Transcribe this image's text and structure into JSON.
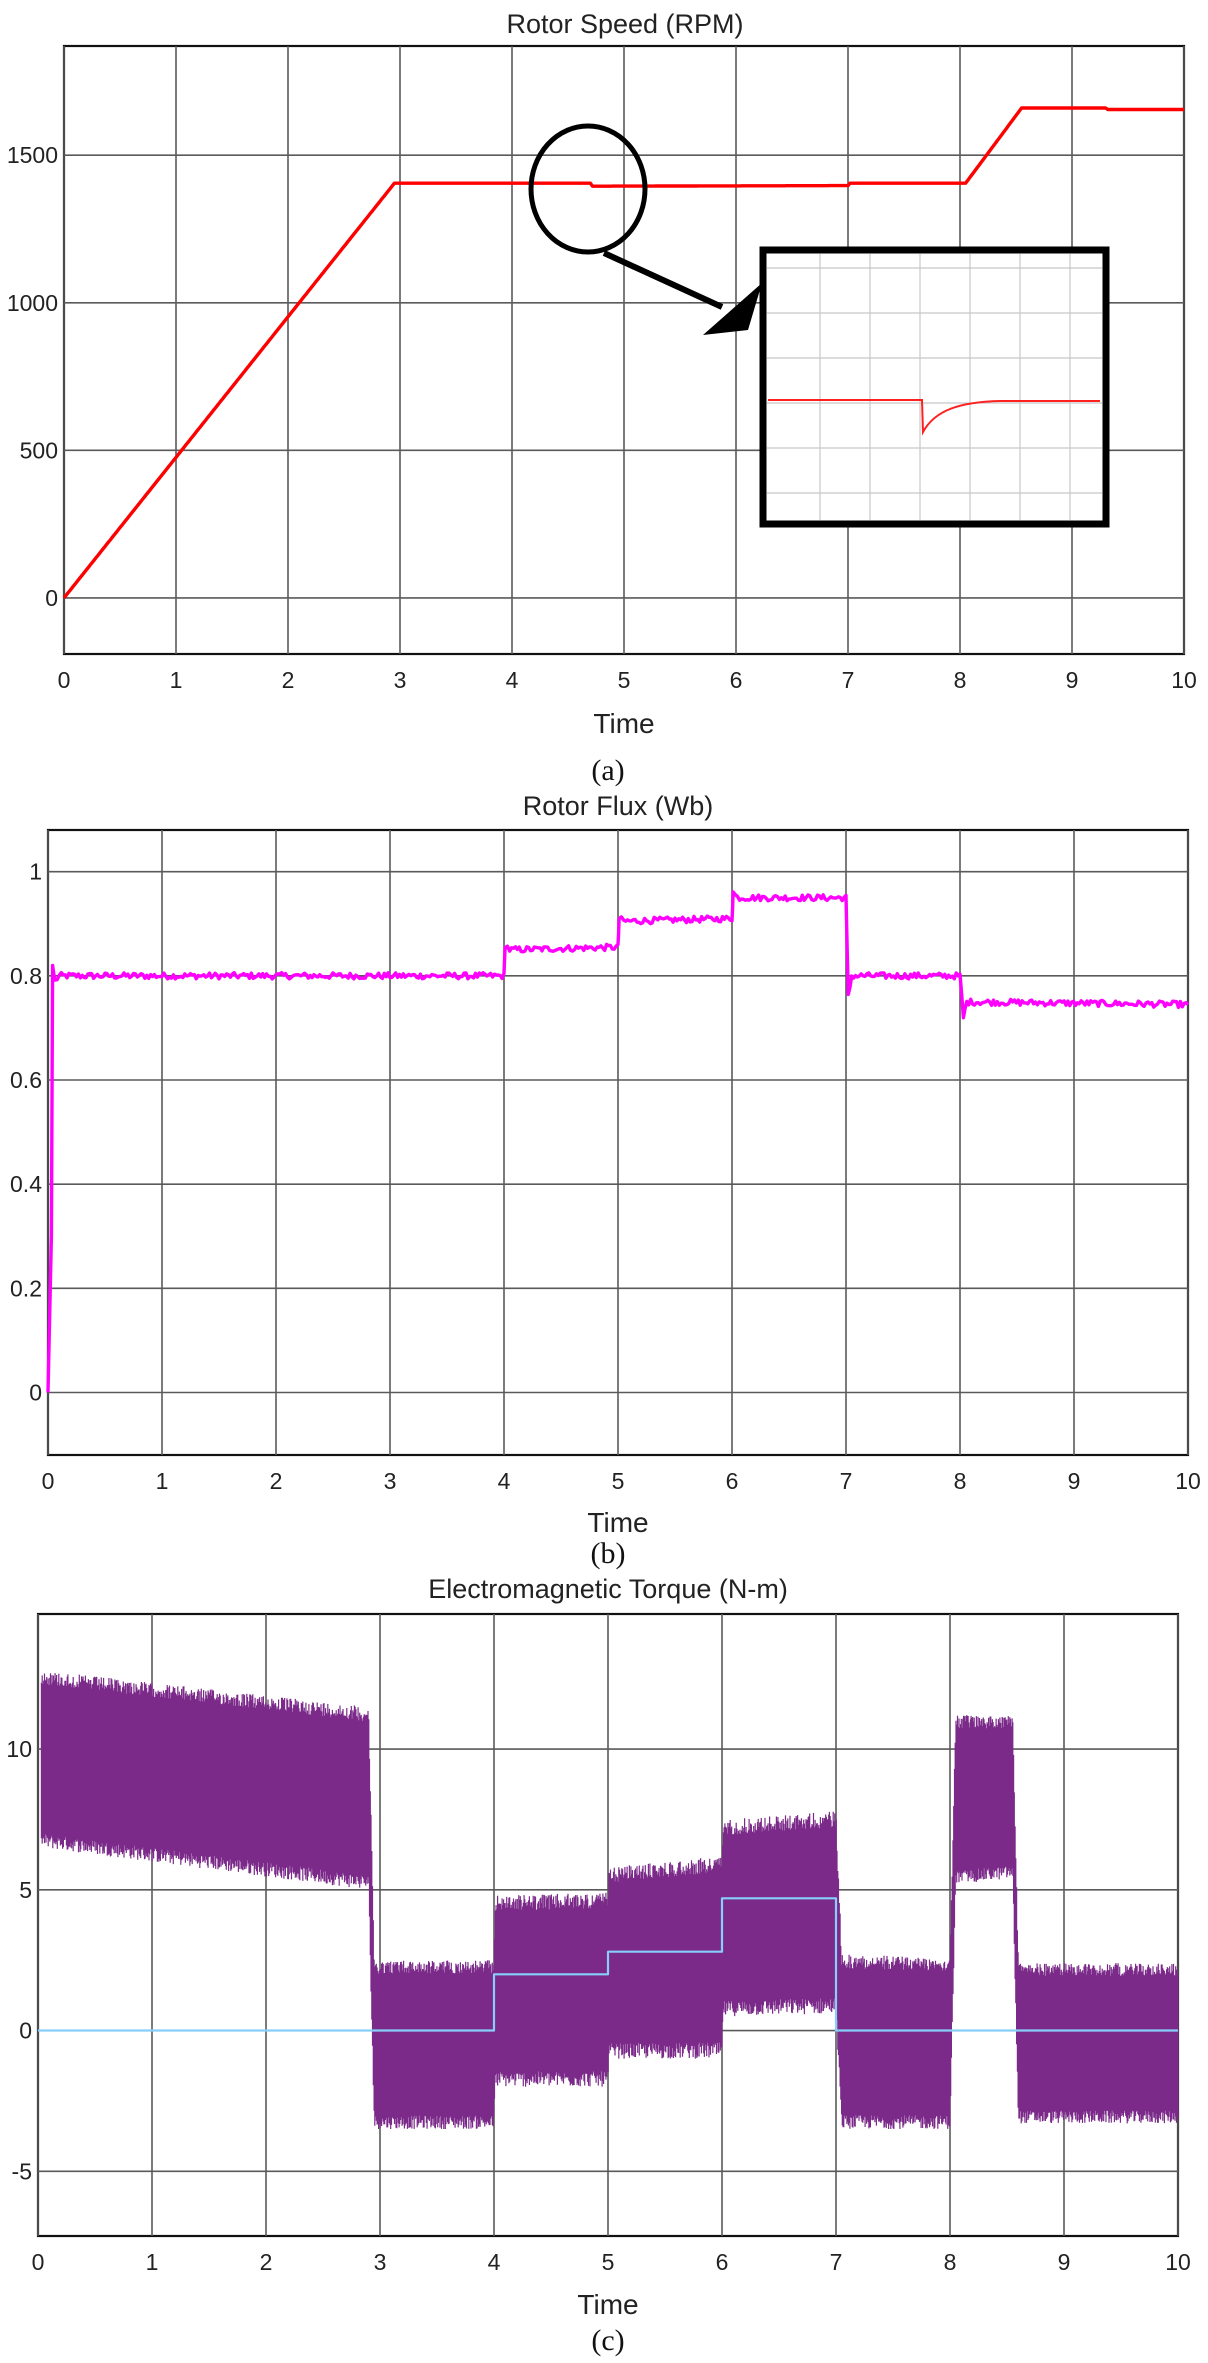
{
  "chart_data": [
    {
      "type": "line",
      "caption": "(a)",
      "title": "Rotor Speed (RPM)",
      "xlabel": "Time",
      "ylabel": "",
      "xlim": [
        0,
        10
      ],
      "ylim": [
        -190,
        1870
      ],
      "xticks": [
        0,
        1,
        2,
        3,
        4,
        5,
        6,
        7,
        8,
        9,
        10
      ],
      "yticks": [
        0,
        500,
        1000,
        1500
      ],
      "grid": true,
      "series": [
        {
          "color": "#ff0000",
          "x": [
            0,
            2.95,
            4.7,
            4.72,
            7,
            7.02,
            8.05,
            8.55,
            9.3,
            9.32,
            10
          ],
          "y": [
            0,
            1405,
            1405,
            1395,
            1397,
            1405,
            1405,
            1660,
            1660,
            1655,
            1655
          ]
        }
      ],
      "annotations": [
        {
          "type": "ellipse",
          "cx": 4.65,
          "cy": 1380
        },
        {
          "type": "inset",
          "color": "#ff0000",
          "description": "zoomed speed dip"
        }
      ]
    },
    {
      "type": "line",
      "caption": "(b)",
      "title": "Rotor Flux (Wb)",
      "xlabel": "Time",
      "ylabel": "",
      "xlim": [
        0,
        10
      ],
      "ylim": [
        -0.12,
        1.08
      ],
      "xticks": [
        0,
        1,
        2,
        3,
        4,
        5,
        6,
        7,
        8,
        9,
        10
      ],
      "yticks": [
        0,
        0.2,
        0.4,
        0.6,
        0.8,
        1
      ],
      "grid": true,
      "series": [
        {
          "color": "#ff00ff",
          "x": [
            0,
            0.03,
            0.04,
            0.06,
            0.1,
            4,
            4.01,
            4.05,
            5,
            5.01,
            5.05,
            6,
            6.01,
            6.05,
            7,
            7.02,
            7.05,
            8,
            8.03,
            8.06,
            10
          ],
          "y": [
            0,
            0.3,
            0.82,
            0.79,
            0.8,
            0.8,
            0.86,
            0.85,
            0.855,
            0.91,
            0.905,
            0.91,
            0.96,
            0.95,
            0.95,
            0.76,
            0.8,
            0.8,
            0.72,
            0.75,
            0.745
          ]
        }
      ]
    },
    {
      "type": "line",
      "caption": "(c)",
      "title": "Electromagnetic Torque (N-m)",
      "xlabel": "Time",
      "ylabel": "",
      "xlim": [
        0,
        10
      ],
      "ylim": [
        -7.3,
        14.8
      ],
      "xticks": [
        0,
        1,
        2,
        3,
        4,
        5,
        6,
        7,
        8,
        9,
        10
      ],
      "yticks": [
        -5,
        0,
        5,
        10
      ],
      "grid": true,
      "series": [
        {
          "color": "#7b2a8a",
          "kind": "band",
          "x": [
            0.03,
            2.9,
            2.95,
            4,
            4.01,
            5,
            5.01,
            6,
            6.01,
            7,
            7.05,
            8,
            8.05,
            8.55,
            8.6,
            10
          ],
          "upper": [
            12.8,
            11.5,
            2.5,
            2.5,
            4.8,
            4.9,
            5.8,
            6.2,
            7.5,
            7.8,
            2.7,
            2.6,
            11.2,
            11.2,
            2.4,
            2.4
          ],
          "lower": [
            6.5,
            5.0,
            -3.5,
            -3.5,
            -2.0,
            -2.0,
            -1.0,
            -1.0,
            0.5,
            0.6,
            -3.5,
            -3.5,
            5.2,
            5.4,
            -3.3,
            -3.3
          ]
        },
        {
          "color": "#87cefa",
          "kind": "step",
          "x": [
            0,
            4,
            4,
            5,
            5,
            6,
            6,
            7,
            7,
            10
          ],
          "y": [
            0,
            0,
            2,
            2,
            2.8,
            2.8,
            4.7,
            4.7,
            0,
            0
          ]
        }
      ]
    }
  ]
}
